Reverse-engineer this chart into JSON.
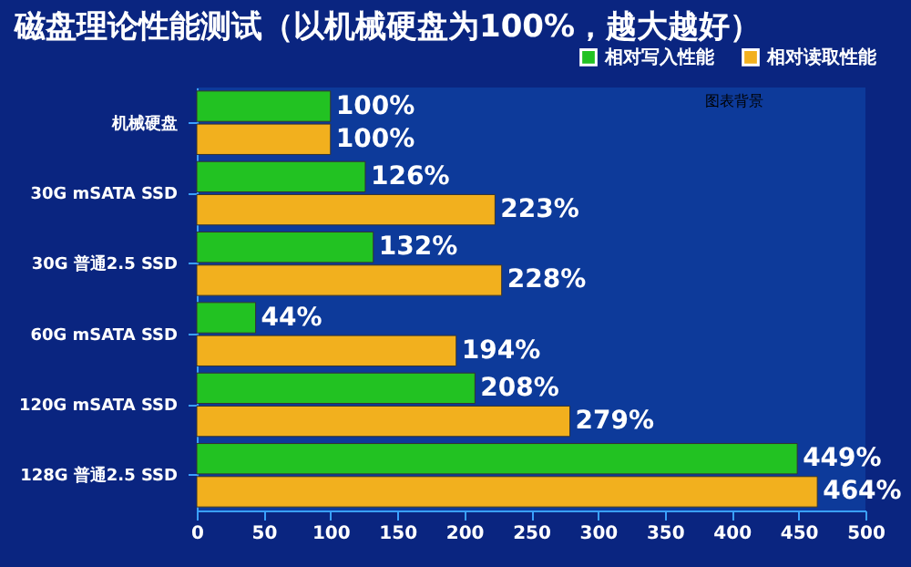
{
  "chart_data": {
    "type": "bar",
    "orientation": "horizontal",
    "title": "磁盘理论性能测试（以机械硬盘为100%，越大越好）",
    "categories": [
      "机械硬盘",
      "30G mSATA SSD",
      "30G 普通2.5 SSD",
      "60G mSATA SSD",
      "120G mSATA SSD",
      "128G 普通2.5 SSD"
    ],
    "series": [
      {
        "name": "相对写入性能",
        "color": "#22c222",
        "values": [
          100,
          126,
          132,
          44,
          208,
          449
        ],
        "value_labels": [
          "100%",
          "126%",
          "132%",
          "44%",
          "208%",
          "449%"
        ]
      },
      {
        "name": "相对读取性能",
        "color": "#f2b01e",
        "values": [
          100,
          223,
          228,
          194,
          279,
          464
        ],
        "value_labels": [
          "100%",
          "223%",
          "228%",
          "194%",
          "279%",
          "464%"
        ]
      }
    ],
    "xlim": [
      0,
      500
    ],
    "xticks": [
      0,
      50,
      100,
      150,
      200,
      250,
      300,
      350,
      400,
      450,
      500
    ],
    "grid": false,
    "legend": "top right",
    "annotations": [
      "图表背景"
    ]
  }
}
